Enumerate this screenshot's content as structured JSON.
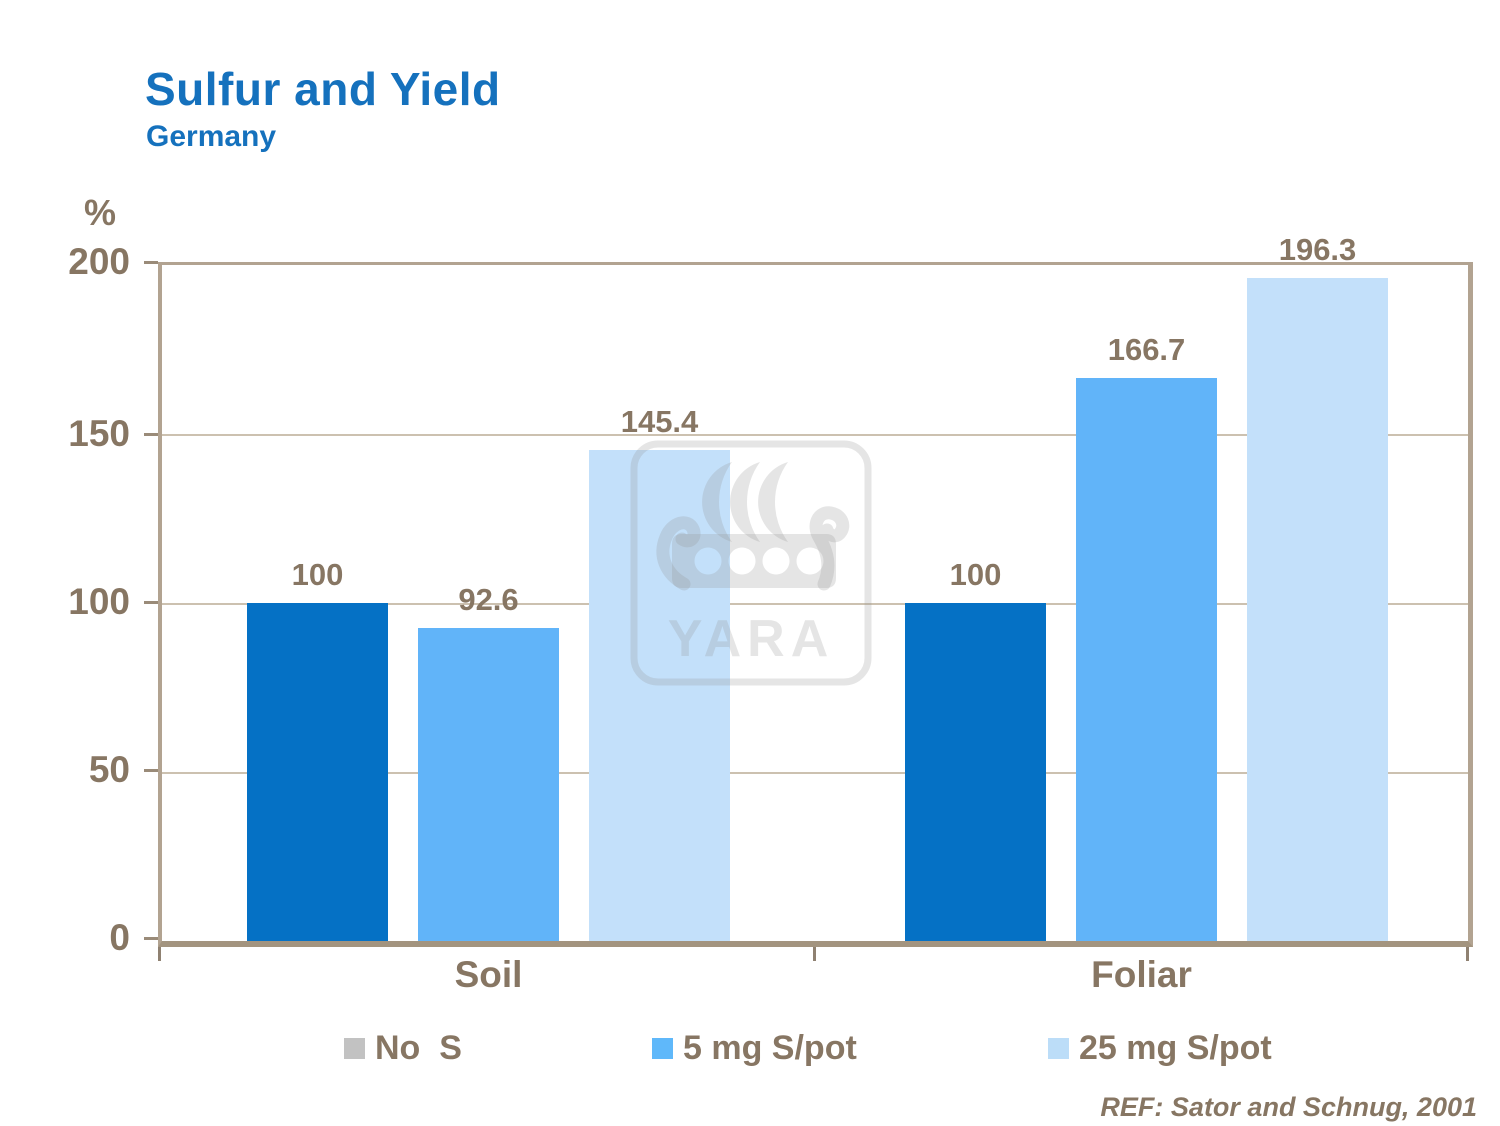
{
  "slide": {
    "title": "Sulfur and Yield",
    "subtitle": "Germany",
    "reference": "REF: Sator and Schnug, 2001",
    "title_color": "#1571BD",
    "text_color": "#877663"
  },
  "watermark": {
    "text": "YARA"
  },
  "chart_data": {
    "type": "bar",
    "title": "Sulfur and Yield",
    "subtitle": "Germany",
    "unit_label": "%",
    "xlabel": "",
    "ylabel": "%",
    "categories": [
      "Soil",
      "Foliar"
    ],
    "series": [
      {
        "name": "No  S",
        "bar_color": "#0571C5",
        "legend_color": "#C2C2C2",
        "values": [
          100,
          100
        ],
        "labels": [
          "100",
          "100"
        ]
      },
      {
        "name": "5 mg S/pot",
        "bar_color": "#61B4F9",
        "legend_color": "#5FB8FA",
        "values": [
          92.6,
          166.7
        ],
        "labels": [
          "92.6",
          "166.7"
        ]
      },
      {
        "name": "25 mg S/pot",
        "bar_color": "#C3E0FA",
        "legend_color": "#BCDDF8",
        "values": [
          145.4,
          196.3
        ],
        "labels": [
          "145.4",
          "196.3"
        ]
      }
    ],
    "ylim": [
      0,
      200
    ],
    "ytick_labels": [
      "200",
      "150",
      "100",
      "50",
      "0"
    ],
    "grid": true,
    "legend_position": "bottom"
  }
}
